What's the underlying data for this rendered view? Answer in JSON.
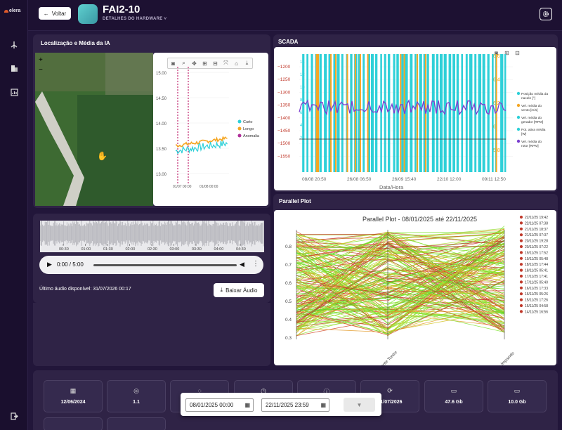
{
  "app": {
    "logo": "elera",
    "back_label": "Voltar",
    "device_title": "FAI2-10",
    "device_subtitle": "DETALHES DO HARDWARE ˅"
  },
  "sidebar": {
    "items": [
      {
        "icon": "turbine-icon"
      },
      {
        "icon": "building-icon"
      },
      {
        "icon": "chart-icon"
      }
    ],
    "logout_icon": "logout-icon"
  },
  "map_panel": {
    "title": "Localização e Média da IA",
    "zoom_in": "+",
    "zoom_out": "−",
    "toolbar": [
      "camera-icon",
      "zoom-icon",
      "pan-icon",
      "zoom-in-icon",
      "zoom-out-icon",
      "autoscale-icon",
      "home-icon",
      "download-icon"
    ]
  },
  "mini_chart": {
    "type": "line",
    "y_ticks": [
      "15.00",
      "14.50",
      "14.00",
      "13.50",
      "13.00"
    ],
    "x_ticks": [
      "01/07 00:00",
      "01/08 00:00"
    ],
    "legend": [
      {
        "name": "Curto",
        "color": "#2ed0d8"
      },
      {
        "name": "Longo",
        "color": "#f5a623"
      },
      {
        "name": "Anomalia",
        "color": "#b0309a"
      }
    ],
    "series": [
      {
        "name": "Curto",
        "level": 13.45
      },
      {
        "name": "Longo",
        "level": 13.55
      }
    ]
  },
  "scada": {
    "title": "SCADA",
    "y_left_ticks": [
      "−1200",
      "−1250",
      "−1300",
      "−1350",
      "−1400",
      "−1450",
      "−1500",
      "−1550"
    ],
    "y_right_ticks": [
      "6.6",
      "6.4",
      "6.2",
      "6",
      "5.8"
    ],
    "x_ticks": [
      "08/08 20:50",
      "26/08 06:50",
      "26/09 15:40",
      "22/10 12:00",
      "09/11 12:50"
    ],
    "xlabel": "Data/Hora",
    "left_overlay": [
      "14",
      "12",
      "10",
      "8",
      "6",
      "4",
      "2"
    ],
    "legend": [
      {
        "name": "Posição média da nacele [°]",
        "color": "#2ed0d8"
      },
      {
        "name": "Vel. média do vento [m/s]",
        "color": "#f5a623"
      },
      {
        "name": "Vel. média do gerador [RPM]",
        "color": "#2ed0d8"
      },
      {
        "name": "Pot. ativa média [W]",
        "color": "#2ed0d8"
      },
      {
        "name": "Vel. média do rotor [RPM]",
        "color": "#7a3fd0"
      }
    ]
  },
  "parallel": {
    "title": "Parallel Plot",
    "chart_title": "Parallel Plot - 08/01/2025 até 22/11/2025",
    "y_ticks": [
      "0.8",
      "0.7",
      "0.6",
      "0.5",
      "0.4",
      "0.3"
    ],
    "axes": [
      "Coeficiente Tontre",
      "Variação Impacido"
    ],
    "legend": [
      {
        "label": "22/11/25 19:42",
        "color": "#c0392b"
      },
      {
        "label": "22/11/25 07:38",
        "color": "#c0392b"
      },
      {
        "label": "21/11/25 18:37",
        "color": "#c0392b"
      },
      {
        "label": "21/11/25 07:37",
        "color": "#c0392b"
      },
      {
        "label": "20/11/25 19:28",
        "color": "#c0392b"
      },
      {
        "label": "20/11/25 07:22",
        "color": "#c0392b"
      },
      {
        "label": "19/11/25 17:52",
        "color": "#c0392b"
      },
      {
        "label": "19/11/25 05:48",
        "color": "#c0392b"
      },
      {
        "label": "18/11/25 17:44",
        "color": "#c0392b"
      },
      {
        "label": "18/11/25 05:41",
        "color": "#c0392b"
      },
      {
        "label": "17/11/25 17:41",
        "color": "#c0392b"
      },
      {
        "label": "17/11/25 05:40",
        "color": "#c0392b"
      },
      {
        "label": "16/11/25 17:33",
        "color": "#c0392b"
      },
      {
        "label": "16/11/25 05:26",
        "color": "#c0392b"
      },
      {
        "label": "15/11/25 17:26",
        "color": "#c0392b"
      },
      {
        "label": "15/11/25 04:58",
        "color": "#c0392b"
      },
      {
        "label": "14/11/25 16:56",
        "color": "#c0392b"
      }
    ]
  },
  "audio": {
    "wave_ticks": [
      "00:30",
      "01:00",
      "01:30",
      "02:00",
      "02:30",
      "03:00",
      "03:30",
      "04:00",
      "04:30"
    ],
    "time": "0:00 / 5:00",
    "last_audio": "Último áudio disponível: 31/07/2026 00:17",
    "download_label": "Baixar Áudio"
  },
  "stats": [
    {
      "icon": "calendar-icon",
      "glyph": "▦",
      "value": "12/06/2024"
    },
    {
      "icon": "fingerprint-icon",
      "glyph": "◎",
      "value": "1.1"
    },
    {
      "icon": "cpu-icon",
      "glyph": "◌",
      "value": ""
    },
    {
      "icon": "clock-icon",
      "glyph": "◷",
      "value": ""
    },
    {
      "icon": "info-icon",
      "glyph": "ⓘ",
      "value": ""
    },
    {
      "icon": "sync-icon",
      "glyph": "⟳",
      "value": "31/07/2026"
    },
    {
      "icon": "harddrive-icon",
      "glyph": "▭",
      "value": "47.6 Gb"
    },
    {
      "icon": "storage-icon",
      "glyph": "▭",
      "value": "10.0 Gb"
    }
  ],
  "filter": {
    "start": "08/01/2025 00:00",
    "end": "22/11/2025 23:59",
    "filter_icon": "filter-icon"
  }
}
